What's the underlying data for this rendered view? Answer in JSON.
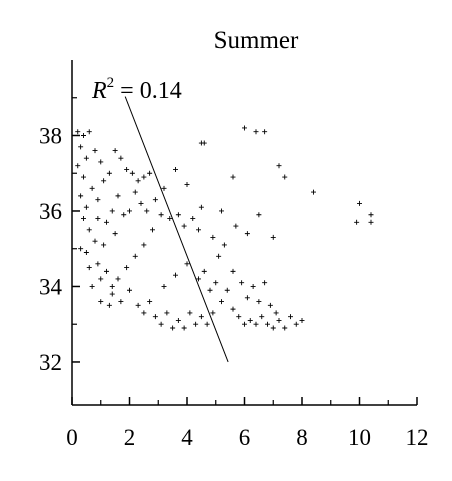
{
  "chart_data": {
    "type": "scatter",
    "title": "Summer",
    "annotation": {
      "base": "R",
      "superscript": "2",
      "rest": " = 0.14"
    },
    "color": "#000000",
    "x": [
      0.2,
      0.4,
      0.6,
      0.3,
      0.2,
      0.5,
      0.8,
      1.0,
      0.4,
      0.7,
      0.3,
      0.5,
      0.9,
      1.1,
      1.3,
      1.5,
      1.7,
      1.9,
      2.1,
      2.3,
      2.5,
      2.7,
      2.2,
      1.6,
      1.4,
      1.2,
      0.9,
      0.6,
      0.8,
      0.5,
      0.4,
      0.3,
      0.6,
      0.9,
      1.0,
      1.2,
      1.4,
      1.1,
      1.5,
      1.8,
      2.0,
      2.4,
      2.6,
      2.9,
      3.1,
      3.4,
      3.7,
      3.9,
      4.2,
      4.4,
      3.2,
      2.8,
      2.5,
      2.2,
      1.9,
      1.6,
      1.4,
      1.7,
      2.0,
      2.3,
      2.5,
      2.7,
      2.9,
      3.1,
      3.3,
      3.5,
      3.7,
      3.9,
      4.1,
      4.3,
      4.5,
      4.7,
      4.9,
      3.2,
      3.6,
      4.0,
      4.4,
      4.6,
      4.8,
      5.0,
      5.2,
      5.4,
      5.6,
      5.8,
      6.0,
      6.2,
      6.4,
      6.6,
      6.8,
      7.0,
      7.2,
      7.4,
      7.6,
      7.8,
      8.0,
      5.6,
      5.9,
      6.1,
      6.3,
      6.5,
      6.7,
      6.9,
      7.1,
      5.1,
      5.3,
      4.9,
      5.7,
      6.1,
      6.5,
      7.0,
      5.2,
      4.5,
      4.0,
      3.6,
      4.5,
      4.6,
      6.0,
      6.4,
      6.7,
      5.6,
      7.2,
      7.4,
      8.4,
      10.0,
      10.4,
      10.4,
      9.9,
      0.7,
      1.0,
      1.3
    ],
    "values": [
      38.1,
      38.0,
      38.1,
      37.7,
      37.2,
      37.4,
      37.6,
      37.3,
      36.9,
      36.6,
      36.4,
      36.1,
      36.3,
      36.8,
      37.0,
      37.6,
      37.4,
      37.1,
      37.0,
      36.8,
      36.9,
      37.0,
      36.5,
      36.4,
      36.0,
      35.7,
      35.8,
      35.5,
      35.2,
      34.9,
      35.8,
      35.0,
      34.5,
      34.6,
      34.2,
      34.4,
      34.0,
      35.1,
      35.4,
      35.9,
      36.0,
      36.2,
      36.0,
      36.3,
      35.9,
      35.8,
      35.9,
      35.6,
      35.8,
      35.5,
      36.6,
      35.5,
      35.1,
      34.8,
      34.5,
      34.2,
      33.8,
      33.6,
      33.9,
      33.5,
      33.3,
      33.6,
      33.2,
      33.0,
      33.3,
      32.9,
      33.1,
      32.9,
      33.3,
      33.0,
      33.2,
      33.0,
      33.3,
      34.0,
      34.3,
      34.6,
      34.2,
      34.4,
      33.9,
      34.1,
      33.6,
      33.9,
      33.4,
      33.2,
      33.0,
      33.1,
      33.0,
      33.2,
      33.0,
      32.9,
      33.1,
      32.9,
      33.2,
      33.0,
      33.1,
      34.4,
      34.1,
      33.7,
      34.0,
      33.6,
      34.1,
      33.5,
      33.3,
      34.8,
      35.1,
      35.3,
      35.6,
      35.4,
      35.9,
      35.3,
      36.0,
      36.1,
      36.7,
      37.1,
      37.8,
      37.8,
      38.2,
      38.1,
      38.1,
      36.9,
      37.2,
      36.9,
      36.5,
      36.2,
      35.9,
      35.7,
      35.7,
      34.0,
      33.6,
      33.5
    ],
    "fit": {
      "x": [
        1.85,
        5.43
      ],
      "y": [
        39.03,
        32.0
      ]
    },
    "xlim": [
      0,
      12
    ],
    "ylim": [
      30.86,
      40.0
    ],
    "xticks": [
      0,
      2,
      4,
      6,
      8,
      10,
      12
    ],
    "yticks": [
      32,
      34,
      36,
      38
    ],
    "xminor": [
      1,
      3,
      5,
      7,
      9,
      11
    ],
    "yminor": [
      33,
      35,
      37,
      39
    ]
  }
}
